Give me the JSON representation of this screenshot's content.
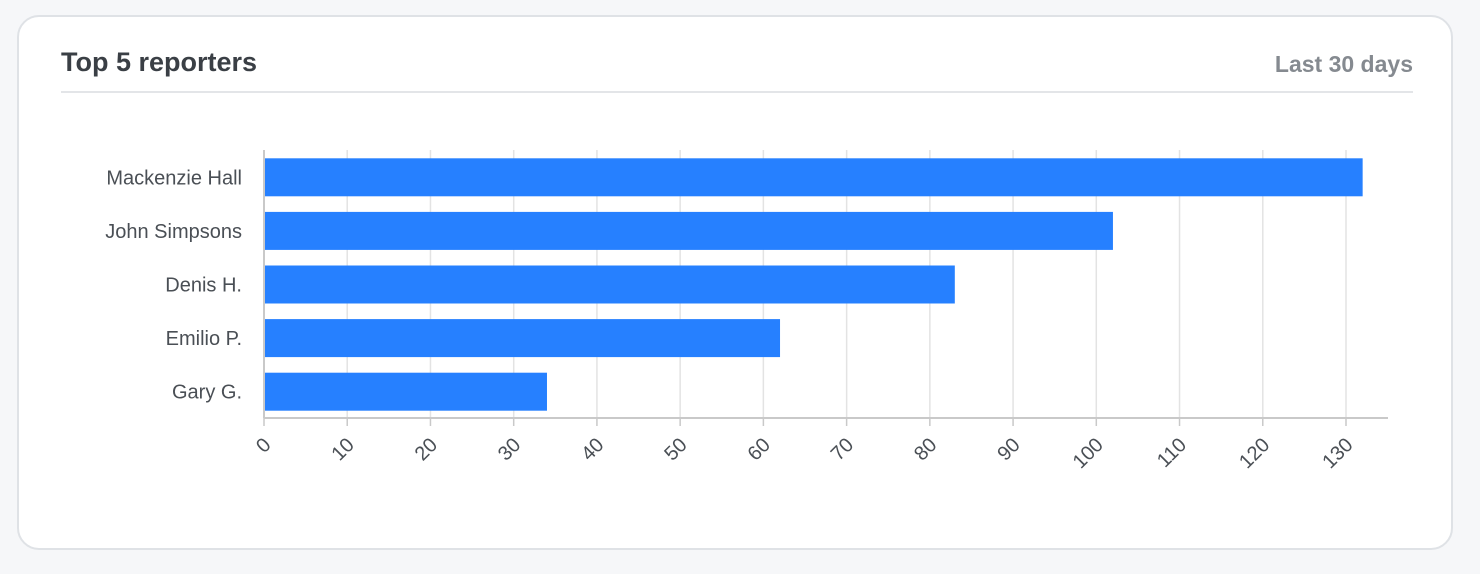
{
  "card": {
    "title": "Top 5 reporters",
    "period": "Last 30 days"
  },
  "chart_data": {
    "type": "bar",
    "orientation": "horizontal",
    "title": "Top 5 reporters",
    "categories": [
      "Mackenzie Hall",
      "John Simpsons",
      "Denis H.",
      "Emilio P.",
      "Gary G."
    ],
    "values": [
      132,
      102,
      83,
      62,
      34
    ],
    "xlim": [
      0,
      135
    ],
    "xticks": [
      0,
      10,
      20,
      30,
      40,
      50,
      60,
      70,
      80,
      90,
      100,
      110,
      120,
      130
    ],
    "grid": true,
    "legend": "none",
    "bar_color": "#2680ff",
    "grid_color": "#e3e3e3",
    "axis_color": "#c9c9c9"
  }
}
